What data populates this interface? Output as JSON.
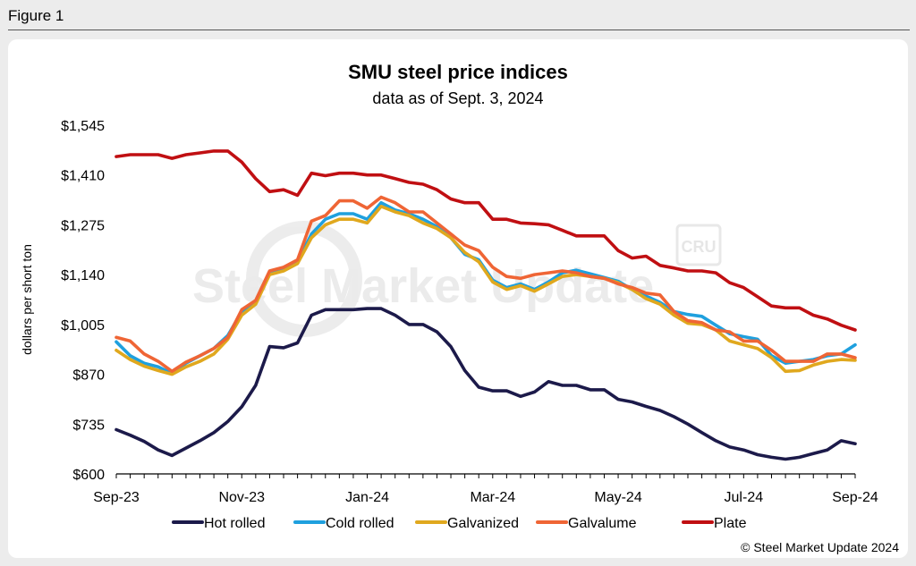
{
  "figure_label": "Figure 1",
  "copyright": "© Steel Market Update 2024",
  "watermark": {
    "brand": "Steel Market Update",
    "logo": "CRU"
  },
  "colors": {
    "hot_rolled": "#1c1a4a",
    "cold_rolled": "#1fa0de",
    "galvanized": "#e0a81e",
    "galvalume": "#ef6535",
    "plate": "#c00f12"
  },
  "chart_data": {
    "type": "line",
    "title": "SMU steel price indices",
    "subtitle": "data as of Sept. 3, 2024",
    "ylabel": "dollars per short ton",
    "ylim": [
      600,
      1545
    ],
    "yticks": [
      600,
      735,
      870,
      1005,
      1140,
      1275,
      1410,
      1545
    ],
    "ytick_labels": [
      "$600",
      "$735",
      "$870",
      "$1,005",
      "$1,140",
      "$1,275",
      "$1,410",
      "$1,545"
    ],
    "xtick_labels": [
      "Sep-23",
      "Nov-23",
      "Jan-24",
      "Mar-24",
      "May-24",
      "Jul-24",
      "Sep-24"
    ],
    "xtick_index": [
      0,
      9,
      18,
      27,
      36,
      45,
      53
    ],
    "x_count": 54,
    "legend_position": "bottom",
    "grid": false,
    "series": [
      {
        "name": "Hot rolled",
        "key": "hot_rolled",
        "values": [
          720,
          705,
          688,
          665,
          650,
          670,
          690,
          712,
          742,
          782,
          840,
          945,
          942,
          955,
          1030,
          1045,
          1045,
          1045,
          1048,
          1048,
          1030,
          1005,
          1005,
          985,
          945,
          880,
          835,
          825,
          825,
          810,
          822,
          850,
          840,
          840,
          828,
          828,
          802,
          795,
          783,
          772,
          755,
          735,
          712,
          690,
          673,
          665,
          652,
          645,
          640,
          645,
          655,
          665,
          690,
          682
        ]
      },
      {
        "name": "Cold rolled",
        "key": "cold_rolled",
        "values": [
          958,
          920,
          900,
          890,
          872,
          900,
          920,
          940,
          975,
          1040,
          1065,
          1145,
          1155,
          1175,
          1250,
          1290,
          1305,
          1305,
          1290,
          1335,
          1315,
          1305,
          1290,
          1270,
          1240,
          1195,
          1180,
          1125,
          1105,
          1115,
          1100,
          1120,
          1145,
          1152,
          1142,
          1132,
          1122,
          1100,
          1082,
          1065,
          1040,
          1032,
          1027,
          1003,
          980,
          972,
          965,
          920,
          900,
          905,
          910,
          920,
          925,
          950
        ]
      },
      {
        "name": "Galvanized",
        "key": "galvanized",
        "values": [
          935,
          910,
          892,
          880,
          870,
          890,
          905,
          925,
          965,
          1030,
          1060,
          1140,
          1150,
          1170,
          1240,
          1275,
          1290,
          1290,
          1280,
          1325,
          1310,
          1300,
          1280,
          1265,
          1240,
          1200,
          1175,
          1120,
          1100,
          1110,
          1095,
          1115,
          1135,
          1140,
          1135,
          1130,
          1118,
          1100,
          1075,
          1060,
          1030,
          1008,
          1005,
          990,
          960,
          950,
          940,
          915,
          878,
          880,
          895,
          905,
          910,
          908
        ]
      },
      {
        "name": "Galvalume",
        "key": "galvalume",
        "values": [
          970,
          960,
          925,
          905,
          878,
          903,
          920,
          940,
          970,
          1045,
          1070,
          1150,
          1160,
          1180,
          1285,
          1300,
          1340,
          1340,
          1320,
          1350,
          1335,
          1310,
          1310,
          1280,
          1250,
          1220,
          1205,
          1160,
          1135,
          1130,
          1140,
          1145,
          1150,
          1145,
          1135,
          1130,
          1115,
          1105,
          1090,
          1085,
          1040,
          1015,
          1010,
          990,
          985,
          960,
          960,
          935,
          905,
          905,
          905,
          925,
          925,
          915
        ]
      },
      {
        "name": "Plate",
        "key": "plate",
        "values": [
          1460,
          1465,
          1465,
          1465,
          1455,
          1465,
          1470,
          1475,
          1475,
          1445,
          1400,
          1365,
          1370,
          1355,
          1415,
          1408,
          1415,
          1415,
          1410,
          1410,
          1400,
          1390,
          1385,
          1370,
          1345,
          1335,
          1335,
          1290,
          1290,
          1280,
          1278,
          1275,
          1260,
          1245,
          1245,
          1245,
          1205,
          1185,
          1190,
          1165,
          1158,
          1150,
          1150,
          1145,
          1118,
          1105,
          1080,
          1055,
          1050,
          1050,
          1030,
          1020,
          1003,
          990
        ]
      }
    ]
  }
}
